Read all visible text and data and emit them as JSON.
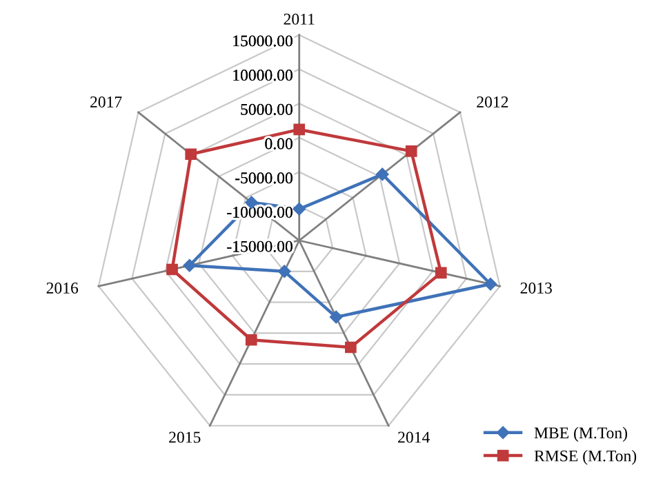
{
  "chart_data": {
    "type": "radar",
    "categories": [
      "2011",
      "2012",
      "2013",
      "2014",
      "2015",
      "2016",
      "2017"
    ],
    "ylim": [
      -15000,
      15000
    ],
    "yticks": [
      {
        "value": -15000,
        "label": "-15000.00"
      },
      {
        "value": -10000,
        "label": "-10000.00"
      },
      {
        "value": -5000,
        "label": "-5000.00"
      },
      {
        "value": 0,
        "label": "0.00"
      },
      {
        "value": 5000,
        "label": "5000.00"
      },
      {
        "value": 10000,
        "label": "10000.00"
      },
      {
        "value": 15000,
        "label": "15000.00"
      }
    ],
    "grid": true,
    "legend": "bottom right",
    "series": [
      {
        "name": "MBE (M.Ton)",
        "color": "#3f72b8",
        "marker": "diamond",
        "values": [
          -10400,
          500,
          13600,
          -2600,
          -10000,
          1400,
          -6100
        ]
      },
      {
        "name": "RMSE (M.Ton)",
        "color": "#c0393b",
        "marker": "square",
        "values": [
          1200,
          5900,
          6200,
          2300,
          1100,
          4000,
          5200
        ]
      }
    ]
  }
}
